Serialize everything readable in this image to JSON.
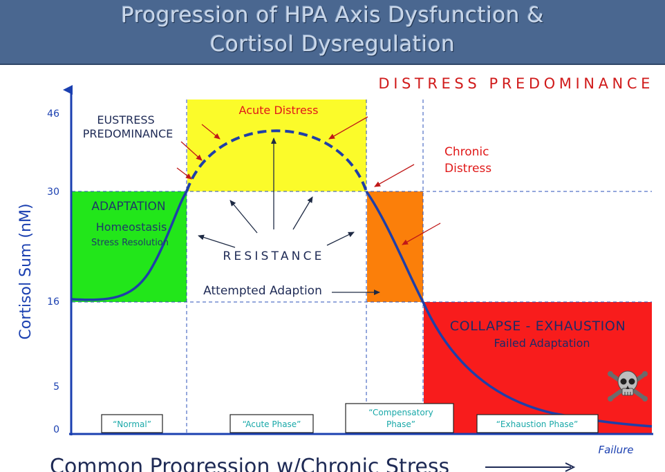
{
  "title": {
    "line1": "Progression of HPA Axis Dysfunction &",
    "line2": "Cortisol Dysregulation"
  },
  "y_axis": {
    "label": "Cortisol Sum (nM)",
    "ticks": [
      "46",
      "30",
      "16",
      "5",
      "0"
    ]
  },
  "x_axis": {
    "label": "Common Progression w/Chronic Stress",
    "end_label": "Failure"
  },
  "regions": {
    "distress_predominance": "DISTRESS PREDOMINANCE",
    "eustress_line1": "EUSTRESS",
    "eustress_line2": "PREDOMINANCE",
    "acute_distress": "Acute Distress",
    "chronic_line1": "Chronic",
    "chronic_line2": "Distress",
    "adaptation": "ADAPTATION",
    "homeostasis": "Homeostasis",
    "stress_resolution": "Stress Resolution",
    "resistance": "RESISTANCE",
    "attempted_adaption": "Attempted Adaption",
    "collapse": "COLLAPSE - EXHAUSTION",
    "failed_adaptation": "Failed Adaptation"
  },
  "phases": {
    "normal": "“Normal”",
    "acute": "“Acute Phase”",
    "compensatory_line1": "“Compensatory",
    "compensatory_line2": "Phase”",
    "exhaustion": "“Exhaustion Phase”"
  },
  "colors": {
    "header_bg": "#4a6790",
    "axis_blue": "#1a3fb0",
    "curve_blue": "#1f3fa8",
    "adaptation_green": "#22e61a",
    "acute_yellow": "#fbfb2a",
    "compensatory_orange": "#fb7f0a",
    "exhaustion_red": "#f81c1c",
    "distress_red": "#d01a1a",
    "phase_text": "#18a8a8"
  },
  "icons": {
    "skull": "skull-crossbones-icon"
  }
}
